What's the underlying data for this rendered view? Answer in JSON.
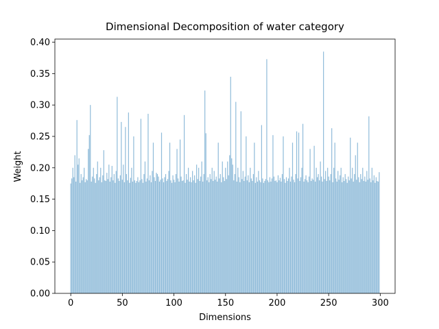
{
  "chart_data": {
    "type": "bar",
    "title": "Dimensional Decomposition of water category",
    "x_label": "Dimensions",
    "y_label": "Weight",
    "color": "#8fbbd9",
    "x": [
      0,
      1,
      2,
      3,
      4,
      5,
      6,
      7,
      8,
      9,
      10,
      11,
      12,
      13,
      14,
      15,
      16,
      17,
      18,
      19,
      20,
      21,
      22,
      23,
      24,
      25,
      26,
      27,
      28,
      29,
      30,
      31,
      32,
      33,
      34,
      35,
      36,
      37,
      38,
      39,
      40,
      41,
      42,
      43,
      44,
      45,
      46,
      47,
      48,
      49,
      50,
      51,
      52,
      53,
      54,
      55,
      56,
      57,
      58,
      59,
      60,
      61,
      62,
      63,
      64,
      65,
      66,
      67,
      68,
      69,
      70,
      71,
      72,
      73,
      74,
      75,
      76,
      77,
      78,
      79,
      80,
      81,
      82,
      83,
      84,
      85,
      86,
      87,
      88,
      89,
      90,
      91,
      92,
      93,
      94,
      95,
      96,
      97,
      98,
      99,
      100,
      101,
      102,
      103,
      104,
      105,
      106,
      107,
      108,
      109,
      110,
      111,
      112,
      113,
      114,
      115,
      116,
      117,
      118,
      119,
      120,
      121,
      122,
      123,
      124,
      125,
      126,
      127,
      128,
      129,
      130,
      131,
      132,
      133,
      134,
      135,
      136,
      137,
      138,
      139,
      140,
      141,
      142,
      143,
      144,
      145,
      146,
      147,
      148,
      149,
      150,
      151,
      152,
      153,
      154,
      155,
      156,
      157,
      158,
      159,
      160,
      161,
      162,
      163,
      164,
      165,
      166,
      167,
      168,
      169,
      170,
      171,
      172,
      173,
      174,
      175,
      176,
      177,
      178,
      179,
      180,
      181,
      182,
      183,
      184,
      185,
      186,
      187,
      188,
      189,
      190,
      191,
      192,
      193,
      194,
      195,
      196,
      197,
      198,
      199,
      200,
      201,
      202,
      203,
      204,
      205,
      206,
      207,
      208,
      209,
      210,
      211,
      212,
      213,
      214,
      215,
      216,
      217,
      218,
      219,
      220,
      221,
      222,
      223,
      224,
      225,
      226,
      227,
      228,
      229,
      230,
      231,
      232,
      233,
      234,
      235,
      236,
      237,
      238,
      239,
      240,
      241,
      242,
      243,
      244,
      245,
      246,
      247,
      248,
      249,
      250,
      251,
      252,
      253,
      254,
      255,
      256,
      257,
      258,
      259,
      260,
      261,
      262,
      263,
      264,
      265,
      266,
      267,
      268,
      269,
      270,
      271,
      272,
      273,
      274,
      275,
      276,
      277,
      278,
      279,
      280,
      281,
      282,
      283,
      284,
      285,
      286,
      287,
      288,
      289,
      290,
      291,
      292,
      293,
      294,
      295,
      296,
      297,
      298,
      299
    ],
    "values": [
      0.175,
      0.183,
      0.2,
      0.185,
      0.22,
      0.178,
      0.276,
      0.205,
      0.215,
      0.176,
      0.19,
      0.18,
      0.185,
      0.2,
      0.177,
      0.182,
      0.18,
      0.23,
      0.252,
      0.3,
      0.178,
      0.186,
      0.2,
      0.183,
      0.176,
      0.19,
      0.21,
      0.18,
      0.185,
      0.2,
      0.177,
      0.188,
      0.228,
      0.18,
      0.179,
      0.192,
      0.182,
      0.205,
      0.178,
      0.185,
      0.203,
      0.18,
      0.19,
      0.176,
      0.195,
      0.313,
      0.183,
      0.179,
      0.188,
      0.273,
      0.181,
      0.205,
      0.177,
      0.265,
      0.19,
      0.18,
      0.288,
      0.176,
      0.184,
      0.2,
      0.178,
      0.25,
      0.18,
      0.176,
      0.179,
      0.185,
      0.177,
      0.18,
      0.278,
      0.182,
      0.176,
      0.19,
      0.21,
      0.178,
      0.183,
      0.286,
      0.18,
      0.188,
      0.177,
      0.195,
      0.24,
      0.185,
      0.179,
      0.192,
      0.19,
      0.186,
      0.178,
      0.181,
      0.256,
      0.183,
      0.177,
      0.185,
      0.19,
      0.179,
      0.182,
      0.195,
      0.24,
      0.18,
      0.176,
      0.188,
      0.181,
      0.177,
      0.19,
      0.23,
      0.183,
      0.178,
      0.245,
      0.186,
      0.179,
      0.18,
      0.284,
      0.176,
      0.19,
      0.181,
      0.2,
      0.178,
      0.185,
      0.177,
      0.195,
      0.18,
      0.188,
      0.176,
      0.205,
      0.182,
      0.2,
      0.179,
      0.186,
      0.21,
      0.178,
      0.19,
      0.323,
      0.255,
      0.18,
      0.185,
      0.177,
      0.19,
      0.182,
      0.2,
      0.179,
      0.195,
      0.181,
      0.186,
      0.178,
      0.24,
      0.183,
      0.19,
      0.177,
      0.21,
      0.185,
      0.179,
      0.2,
      0.182,
      0.21,
      0.188,
      0.22,
      0.345,
      0.215,
      0.205,
      0.18,
      0.19,
      0.305,
      0.178,
      0.2,
      0.185,
      0.177,
      0.29,
      0.182,
      0.195,
      0.179,
      0.186,
      0.25,
      0.18,
      0.188,
      0.177,
      0.2,
      0.183,
      0.179,
      0.19,
      0.24,
      0.176,
      0.185,
      0.178,
      0.195,
      0.18,
      0.177,
      0.268,
      0.183,
      0.176,
      0.179,
      0.182,
      0.373,
      0.18,
      0.177,
      0.185,
      0.178,
      0.183,
      0.252,
      0.186,
      0.179,
      0.18,
      0.177,
      0.188,
      0.18,
      0.184,
      0.178,
      0.19,
      0.25,
      0.182,
      0.176,
      0.185,
      0.179,
      0.183,
      0.2,
      0.178,
      0.186,
      0.24,
      0.181,
      0.177,
      0.19,
      0.258,
      0.183,
      0.256,
      0.179,
      0.185,
      0.2,
      0.27,
      0.178,
      0.182,
      0.188,
      0.18,
      0.177,
      0.186,
      0.23,
      0.179,
      0.183,
      0.181,
      0.235,
      0.178,
      0.2,
      0.185,
      0.19,
      0.18,
      0.21,
      0.186,
      0.178,
      0.385,
      0.182,
      0.195,
      0.179,
      0.2,
      0.186,
      0.18,
      0.19,
      0.263,
      0.177,
      0.2,
      0.24,
      0.183,
      0.178,
      0.195,
      0.181,
      0.188,
      0.2,
      0.177,
      0.185,
      0.179,
      0.19,
      0.182,
      0.176,
      0.186,
      0.18,
      0.248,
      0.183,
      0.2,
      0.178,
      0.19,
      0.22,
      0.181,
      0.24,
      0.185,
      0.177,
      0.19,
      0.182,
      0.2,
      0.179,
      0.186,
      0.178,
      0.195,
      0.181,
      0.282,
      0.183,
      0.177,
      0.2,
      0.18,
      0.188,
      0.176,
      0.185,
      0.179,
      0.178,
      0.193
    ],
    "xlim": [
      -15.4,
      314.4
    ],
    "xticks": [
      0,
      50,
      100,
      150,
      200,
      250,
      300
    ],
    "ylim": [
      0,
      0.405
    ],
    "yticks": [
      {
        "value": 0,
        "label": "0.00"
      },
      {
        "value": 0.05,
        "label": "0.05"
      },
      {
        "value": 0.1,
        "label": "0.10"
      },
      {
        "value": 0.15,
        "label": "0.15"
      },
      {
        "value": 0.2,
        "label": "0.20"
      },
      {
        "value": 0.25,
        "label": "0.25"
      },
      {
        "value": 0.3,
        "label": "0.30"
      },
      {
        "value": 0.35,
        "label": "0.35"
      },
      {
        "value": 0.4,
        "label": "0.40"
      }
    ],
    "grid": false
  }
}
